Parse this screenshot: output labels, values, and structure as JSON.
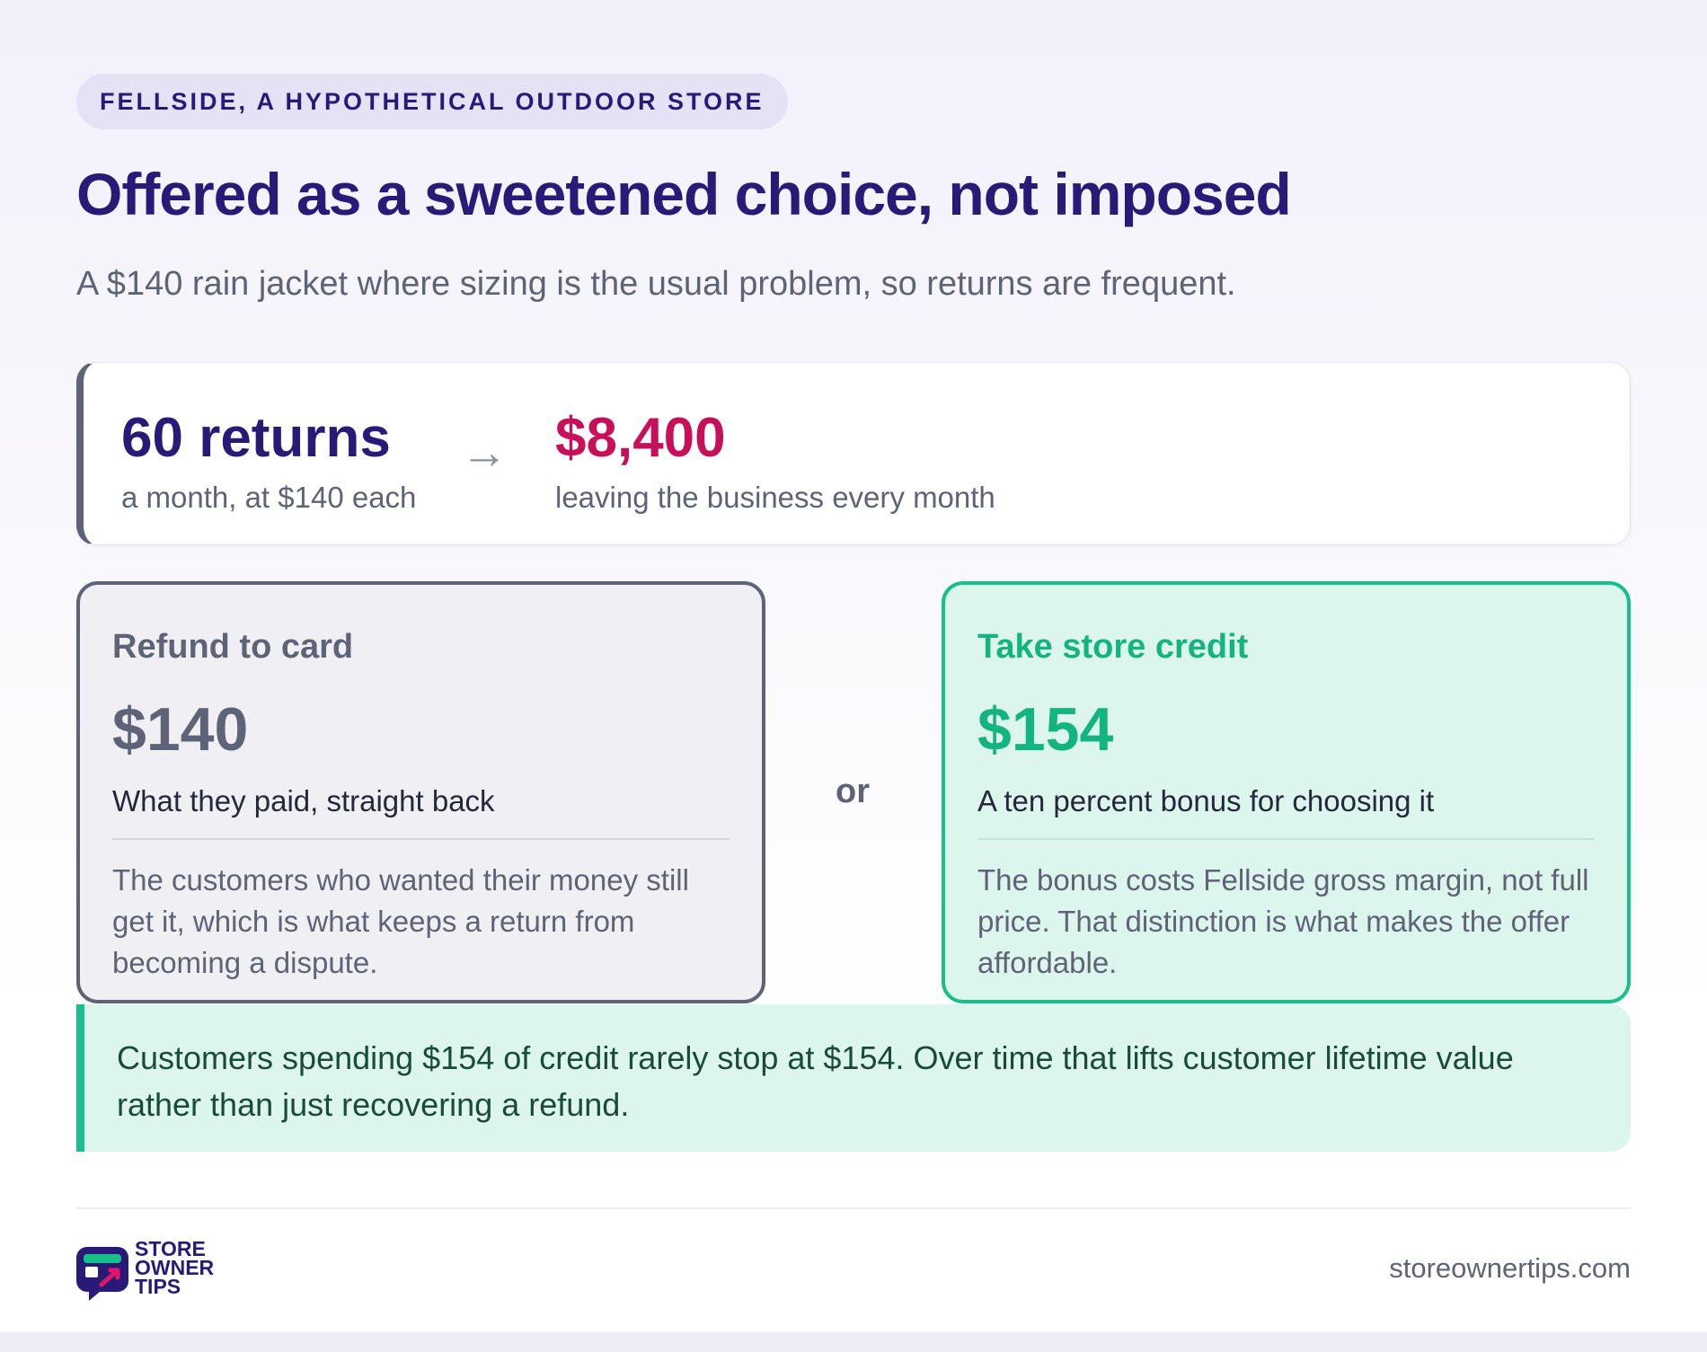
{
  "header": {
    "eyebrow": "FELLSIDE, A HYPOTHETICAL OUTDOOR STORE",
    "title": "Offered as a sweetened choice, not imposed",
    "subtitle": "A $140 rain jacket where sizing is the usual problem, so returns are frequent."
  },
  "stats": {
    "left_value": "60 returns",
    "left_caption": "a month, at $140 each",
    "arrow": "→",
    "right_value": "$8,400",
    "right_caption": "leaving the business every month"
  },
  "options": {
    "refund": {
      "label": "Refund to card",
      "amount": "$140",
      "description": "What they paid, straight back",
      "note": "The customers who wanted their money still get it, which is what keeps a return from becoming a dispute."
    },
    "separator": "or",
    "credit": {
      "label": "Take store credit",
      "amount": "$154",
      "description": "A ten percent bonus for choosing it",
      "note": "The bonus costs Fellside gross margin, not full price. That distinction is what makes the offer affordable."
    }
  },
  "callout": {
    "text": "Customers spending $154 of credit rarely stop at $154. Over time that lifts customer lifetime value rather than just recovering a refund."
  },
  "footer": {
    "brand_line1": "STORE",
    "brand_line2": "OWNER",
    "brand_line3": "TIPS",
    "site_url": "storeownertips.com",
    "logo_icon": "storefront-chat-icon"
  },
  "colors": {
    "primary": "#2a1a78",
    "accent_red": "#c8105a",
    "accent_green": "#17c08a",
    "neutral": "#5f6378"
  }
}
